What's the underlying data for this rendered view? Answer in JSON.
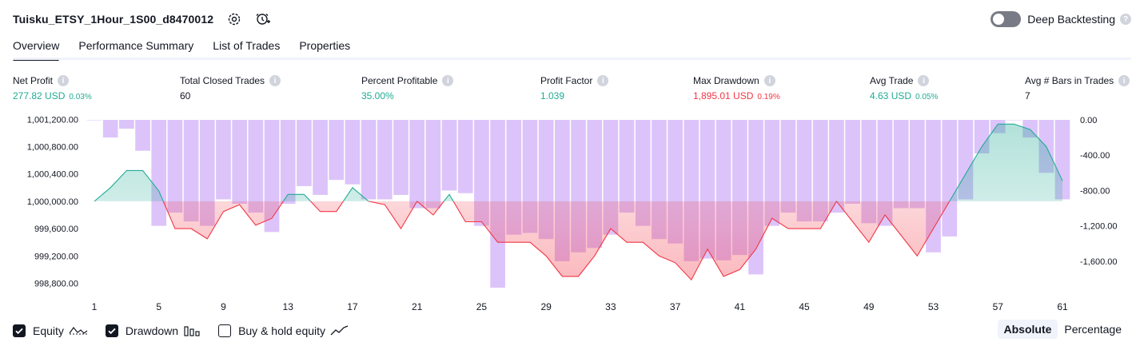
{
  "strategy": {
    "title": "Tuisku_ETSY_1Hour_1S00_d8470012"
  },
  "header": {
    "deep_backtesting_label": "Deep Backtesting"
  },
  "tabs": [
    {
      "label": "Overview",
      "active": true
    },
    {
      "label": "Performance Summary",
      "active": false
    },
    {
      "label": "List of Trades",
      "active": false
    },
    {
      "label": "Properties",
      "active": false
    }
  ],
  "metrics": [
    {
      "label": "Net Profit",
      "value": "277.82 USD",
      "pct": "0.03%",
      "color": "#22ab94"
    },
    {
      "label": "Total Closed Trades",
      "value": "60",
      "pct": "",
      "color": "#131722"
    },
    {
      "label": "Percent Profitable",
      "value": "35.00%",
      "pct": "",
      "color": "#22ab94"
    },
    {
      "label": "Profit Factor",
      "value": "1.039",
      "pct": "",
      "color": "#22ab94"
    },
    {
      "label": "Max Drawdown",
      "value": "1,895.01 USD",
      "pct": "0.19%",
      "color": "#f23645"
    },
    {
      "label": "Avg Trade",
      "value": "4.63 USD",
      "pct": "0.05%",
      "color": "#22ab94"
    },
    {
      "label": "Avg # Bars in Trades",
      "value": "7",
      "pct": "",
      "color": "#131722"
    }
  ],
  "chart_data": {
    "type": "bar",
    "x_ticks": [
      "1",
      "5",
      "9",
      "13",
      "17",
      "21",
      "25",
      "29",
      "33",
      "37",
      "41",
      "45",
      "49",
      "53",
      "57",
      "61"
    ],
    "left_axis": {
      "ticks": [
        "1,001,200.00",
        "1,000,800.00",
        "1,000,400.00",
        "1,000,000.00",
        "999,600.00",
        "999,200.00",
        "998,800.00"
      ],
      "ylim": [
        998700,
        1001250
      ],
      "baseline": 1000000
    },
    "right_axis": {
      "ticks": [
        "0.00",
        "-400.00",
        "-800.00",
        "-1,200.00",
        "-1,600.00"
      ],
      "ylim": [
        -1900,
        0
      ]
    },
    "series": [
      {
        "name": "Equity",
        "type": "line",
        "values": [
          1000000,
          1000200,
          1000450,
          1000450,
          1000150,
          999600,
          999600,
          999450,
          999850,
          999950,
          999650,
          999750,
          1000100,
          1000100,
          999850,
          999850,
          1000200,
          1000000,
          999950,
          999600,
          1000000,
          999800,
          1000100,
          999700,
          999700,
          999400,
          999400,
          999400,
          999200,
          998900,
          998900,
          999200,
          999600,
          999400,
          999400,
          999200,
          999100,
          998850,
          999300,
          998900,
          999000,
          999300,
          999750,
          999600,
          999600,
          999600,
          1000000,
          999700,
          999400,
          999800,
          999500,
          999200,
          999600,
          1000000,
          1000400,
          1000800,
          1001130,
          1001130,
          1001050,
          1000800,
          1000300
        ]
      },
      {
        "name": "Drawdown",
        "type": "bar",
        "values": [
          0,
          -200,
          -100,
          -350,
          -1200,
          -1050,
          -1150,
          -1200,
          -900,
          -950,
          -1050,
          -1270,
          -950,
          -750,
          -850,
          -680,
          -730,
          -900,
          -900,
          -850,
          -1000,
          -1000,
          -800,
          -830,
          -1200,
          -1900,
          -1300,
          -1280,
          -1350,
          -1600,
          -1500,
          -1450,
          -1300,
          -1050,
          -1200,
          -1350,
          -1400,
          -1600,
          -1570,
          -1590,
          -1530,
          -1750,
          -1200,
          -1050,
          -1150,
          -1150,
          -1050,
          -950,
          -1170,
          -1200,
          -1000,
          -1000,
          -1500,
          -1320,
          -900,
          -380,
          -150,
          0,
          -200,
          -600,
          -900
        ]
      }
    ]
  },
  "footer": {
    "equity_label": "Equity",
    "drawdown_label": "Drawdown",
    "buyhold_label": "Buy & hold equity",
    "absolute_label": "Absolute",
    "percentage_label": "Percentage"
  }
}
